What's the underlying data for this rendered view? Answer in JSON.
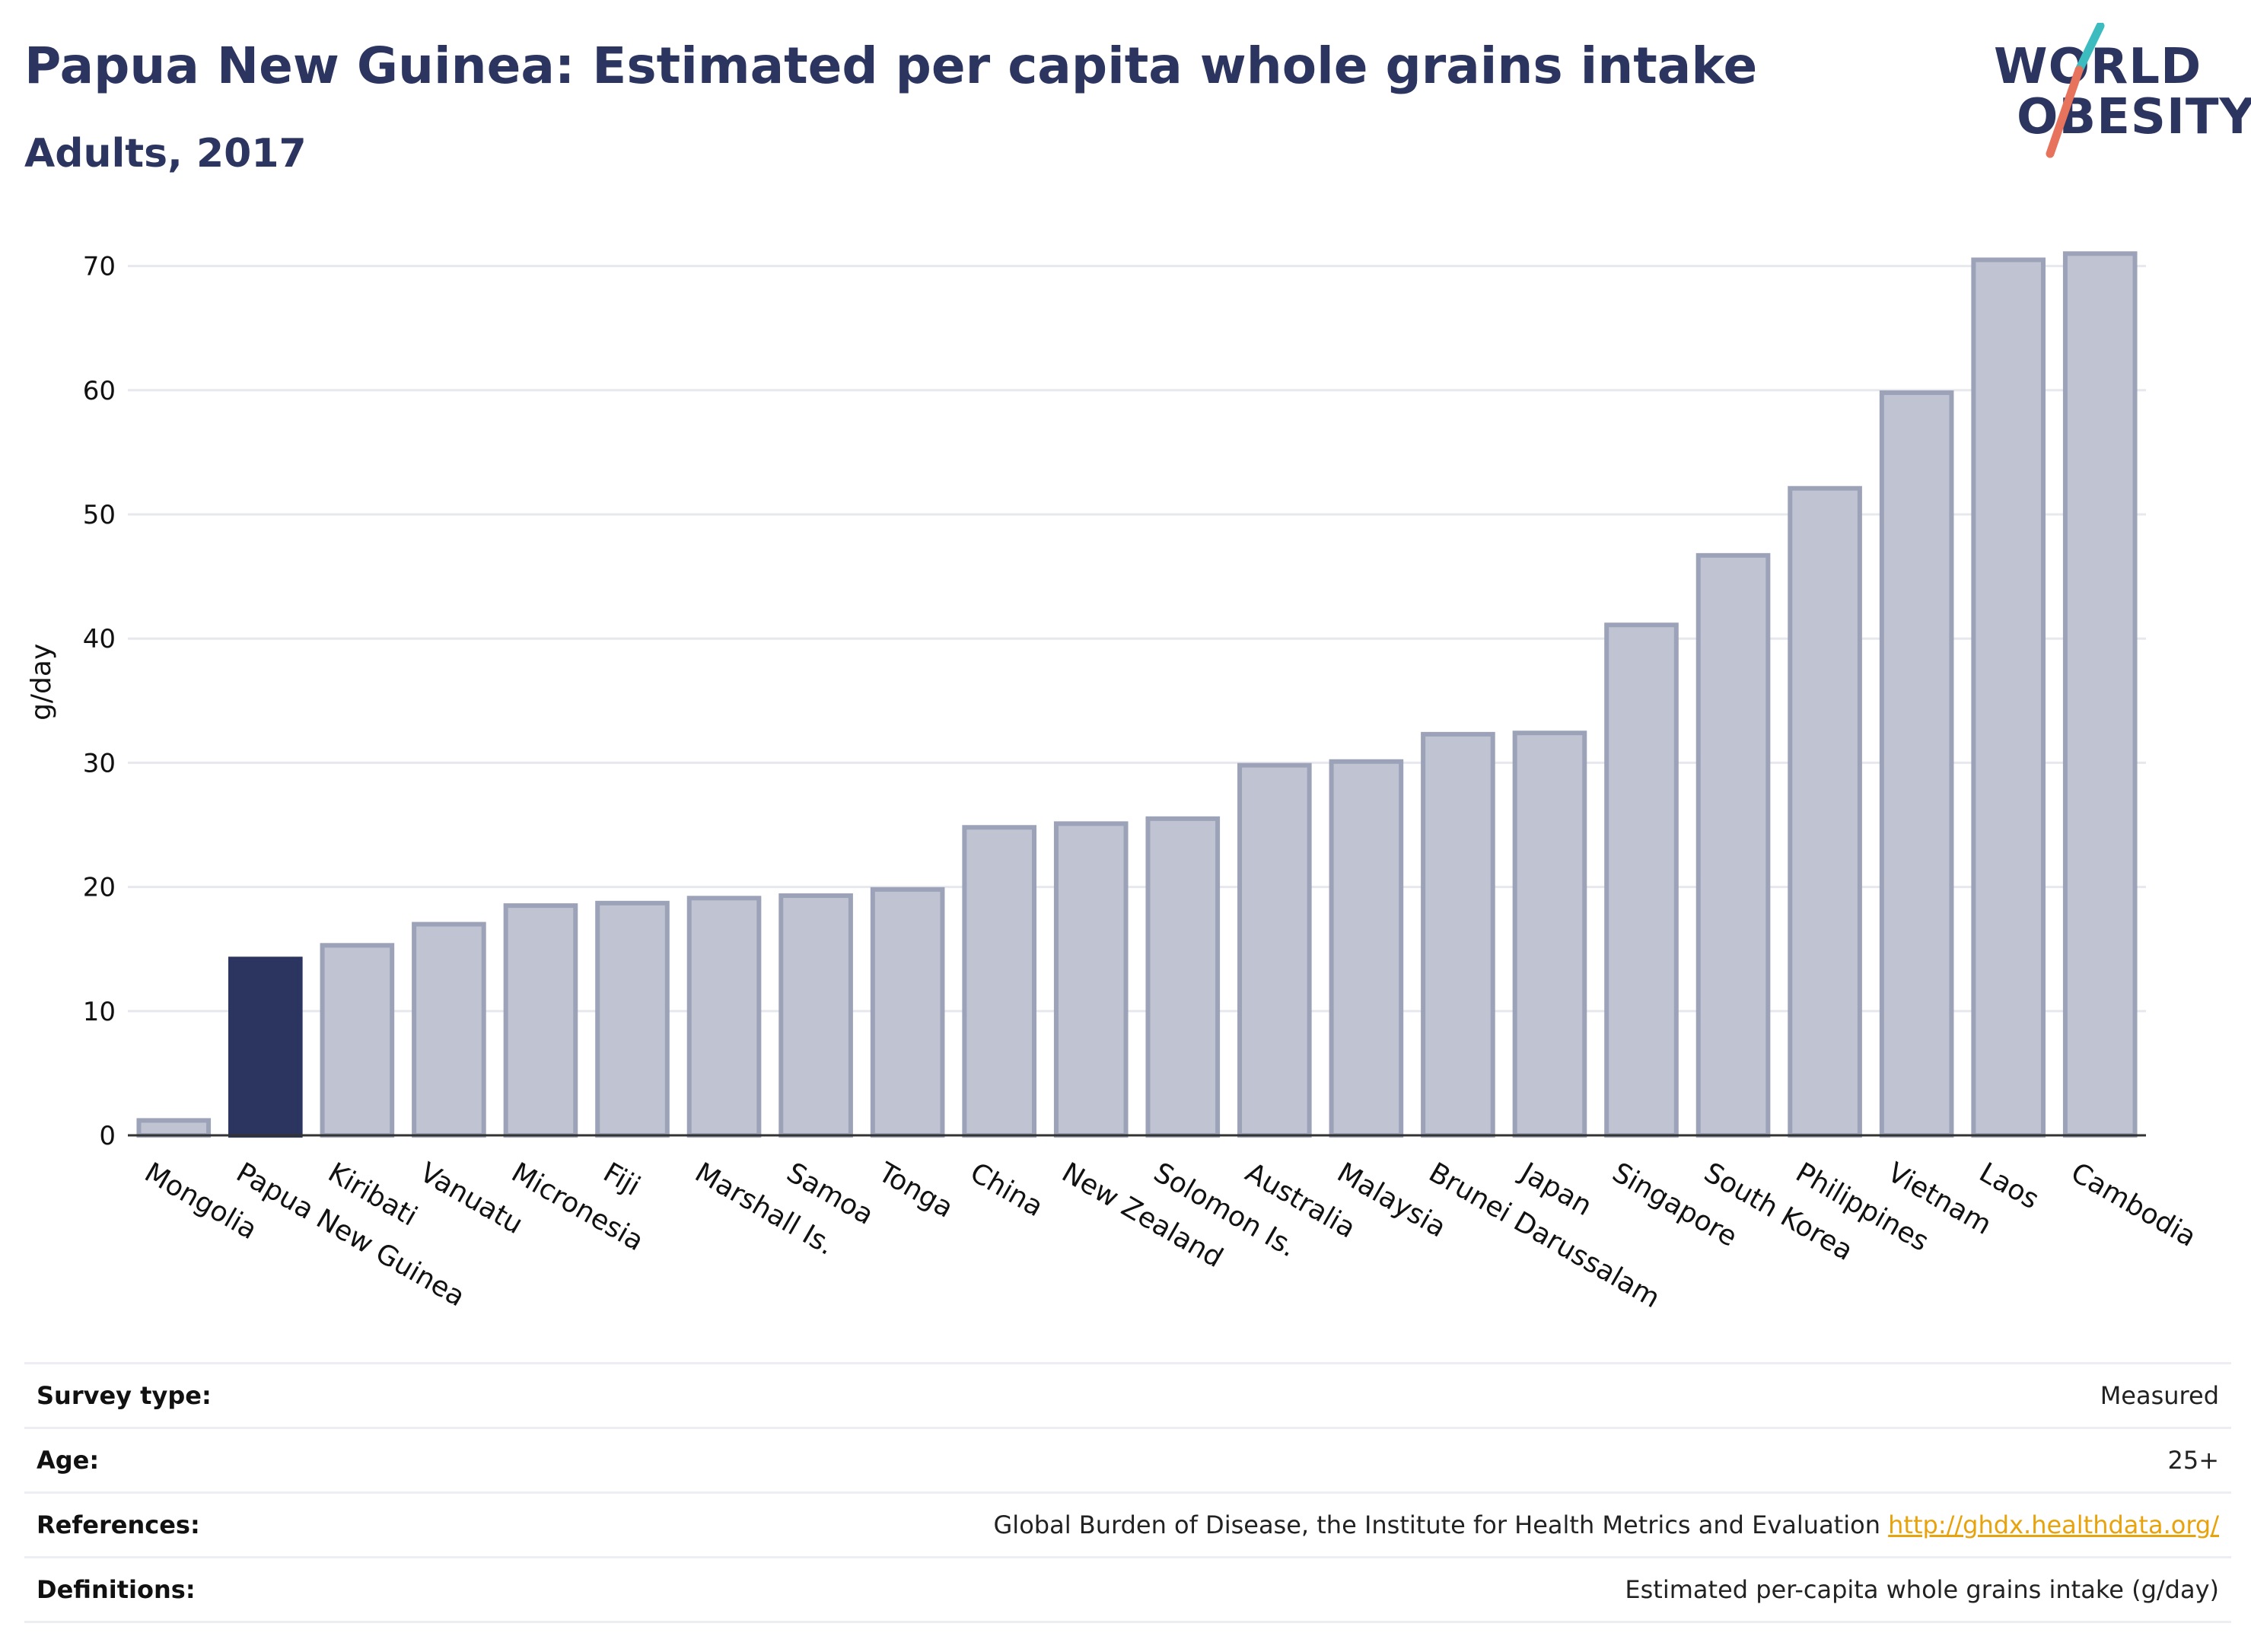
{
  "title": "Papua New Guinea: Estimated per capita whole grains intake",
  "subtitle": "Adults, 2017",
  "logo": {
    "line1": "WORLD",
    "line2": "OBESITY"
  },
  "colors": {
    "highlight": "#2b3560",
    "bar_fill": "#c0c3d1",
    "bar_stroke": "#9ca2b8",
    "logo_teal": "#3dbcc0",
    "logo_coral": "#e8735c",
    "link": "#e8a20c"
  },
  "chart_data": {
    "type": "bar",
    "title": "",
    "xlabel": "",
    "ylabel": "g/day",
    "ylim": [
      0,
      73
    ],
    "yticks": [
      0,
      10,
      20,
      30,
      40,
      50,
      60,
      70
    ],
    "grid": true,
    "highlight_category": "Papua New Guinea",
    "categories": [
      "Mongolia",
      "Papua New Guinea",
      "Kiribati",
      "Vanuatu",
      "Micronesia",
      "Fiji",
      "Marshall Is.",
      "Samoa",
      "Tonga",
      "China",
      "New Zealand",
      "Solomon Is.",
      "Australia",
      "Malaysia",
      "Brunei Darussalam",
      "Japan",
      "Singapore",
      "South Korea",
      "Philippines",
      "Vietnam",
      "Laos",
      "Cambodia"
    ],
    "values": [
      1.2,
      14.2,
      15.3,
      17.0,
      18.5,
      18.7,
      19.1,
      19.3,
      19.8,
      24.8,
      25.1,
      25.5,
      29.8,
      30.1,
      32.3,
      32.4,
      41.1,
      46.7,
      52.1,
      59.8,
      70.5,
      71.0
    ]
  },
  "meta": {
    "survey_type_label": "Survey type:",
    "survey_type_value": "Measured",
    "age_label": "Age:",
    "age_value": "25+",
    "references_label": "References:",
    "references_value": "Global Burden of Disease, the Institute for Health Metrics and Evaluation",
    "references_link": "http://ghdx.healthdata.org/",
    "definitions_label": "Definitions:",
    "definitions_value": "Estimated per-capita whole grains intake (g/day)"
  }
}
